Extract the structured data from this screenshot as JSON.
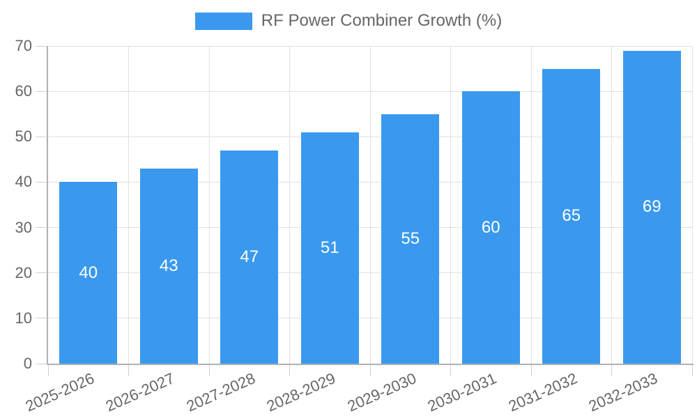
{
  "legend": {
    "label": "RF Power Combiner Growth (%)"
  },
  "chart_data": {
    "type": "bar",
    "title": "RF Power Combiner Growth (%)",
    "categories": [
      "2025-2026",
      "2026-2027",
      "2027-2028",
      "2028-2029",
      "2029-2030",
      "2030-2031",
      "2031-2032",
      "2032-2033"
    ],
    "values": [
      40,
      43,
      47,
      51,
      55,
      60,
      65,
      69
    ],
    "xlabel": "",
    "ylabel": "",
    "ylim": [
      0,
      70
    ],
    "yticks": [
      0,
      10,
      20,
      30,
      40,
      50,
      60,
      70
    ],
    "grid": true,
    "legend_position": "top",
    "value_labels": "inside-center",
    "colors": {
      "bar": "#3a99ee",
      "gridline": "#e0e0e0",
      "axis_line": "#b0b0b0",
      "tick_mark": "#cfcfcf",
      "tick_text": "#666666",
      "value_label_text": "#ffffff",
      "background": "#ffffff"
    }
  }
}
